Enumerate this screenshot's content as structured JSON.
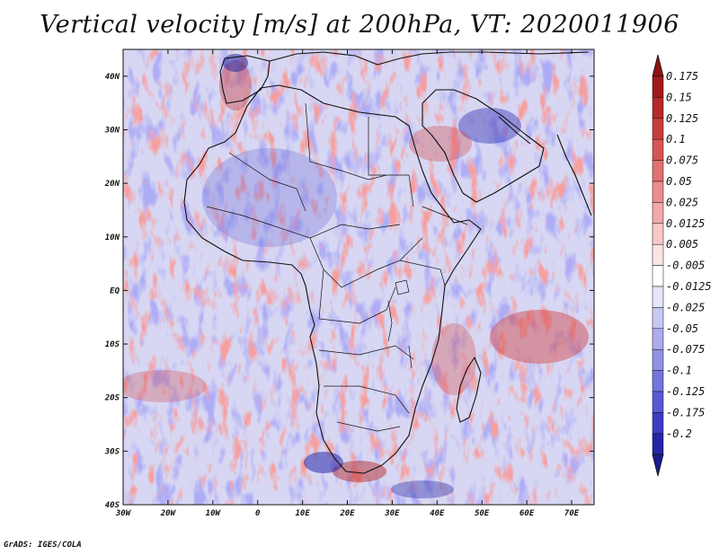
{
  "title": "Vertical velocity [m/s] at 200hPa, VT: 2020011906",
  "footer": "GrADS: IGES/COLA",
  "map": {
    "projection": "latlon",
    "lon_range": [
      -30,
      75
    ],
    "lat_range": [
      -40,
      45
    ],
    "lon_ticks": [
      {
        "value": -30,
        "label": "30W"
      },
      {
        "value": -20,
        "label": "20W"
      },
      {
        "value": -10,
        "label": "10W"
      },
      {
        "value": 0,
        "label": "0"
      },
      {
        "value": 10,
        "label": "10E"
      },
      {
        "value": 20,
        "label": "20E"
      },
      {
        "value": 30,
        "label": "30E"
      },
      {
        "value": 40,
        "label": "40E"
      },
      {
        "value": 50,
        "label": "50E"
      },
      {
        "value": 60,
        "label": "60E"
      },
      {
        "value": 70,
        "label": "70E"
      }
    ],
    "lat_ticks": [
      {
        "value": 40,
        "label": "40N"
      },
      {
        "value": 30,
        "label": "30N"
      },
      {
        "value": 20,
        "label": "20N"
      },
      {
        "value": 10,
        "label": "10N"
      },
      {
        "value": 0,
        "label": "EQ"
      },
      {
        "value": -10,
        "label": "10S"
      },
      {
        "value": -20,
        "label": "20S"
      },
      {
        "value": -30,
        "label": "30S"
      },
      {
        "value": -40,
        "label": "40S"
      }
    ]
  },
  "colorbar": {
    "levels": [
      {
        "label": "0.175",
        "color": "#a01818"
      },
      {
        "label": "0.15",
        "color": "#b82828"
      },
      {
        "label": "0.125",
        "color": "#c83c3c"
      },
      {
        "label": "0.1",
        "color": "#d85454"
      },
      {
        "label": "0.075",
        "color": "#e47070"
      },
      {
        "label": "0.05",
        "color": "#ec8c8c"
      },
      {
        "label": "0.025",
        "color": "#f2a8a8"
      },
      {
        "label": "0.0125",
        "color": "#f8c8c8"
      },
      {
        "label": "0.005",
        "color": "#fce4e4"
      },
      {
        "label": "-0.005",
        "color": "#ffffff"
      },
      {
        "label": "-0.0125",
        "color": "#e4e4fa"
      },
      {
        "label": "-0.025",
        "color": "#c8c8f4"
      },
      {
        "label": "-0.05",
        "color": "#acacee"
      },
      {
        "label": "-0.075",
        "color": "#9090e6"
      },
      {
        "label": "-0.1",
        "color": "#7474de"
      },
      {
        "label": "-0.125",
        "color": "#5858d2"
      },
      {
        "label": "-0.175",
        "color": "#3c3cc4"
      },
      {
        "label": "-0.2",
        "color": "#2424a8"
      }
    ],
    "top_color": "#901010",
    "bottom_color": "#1a1a90"
  }
}
